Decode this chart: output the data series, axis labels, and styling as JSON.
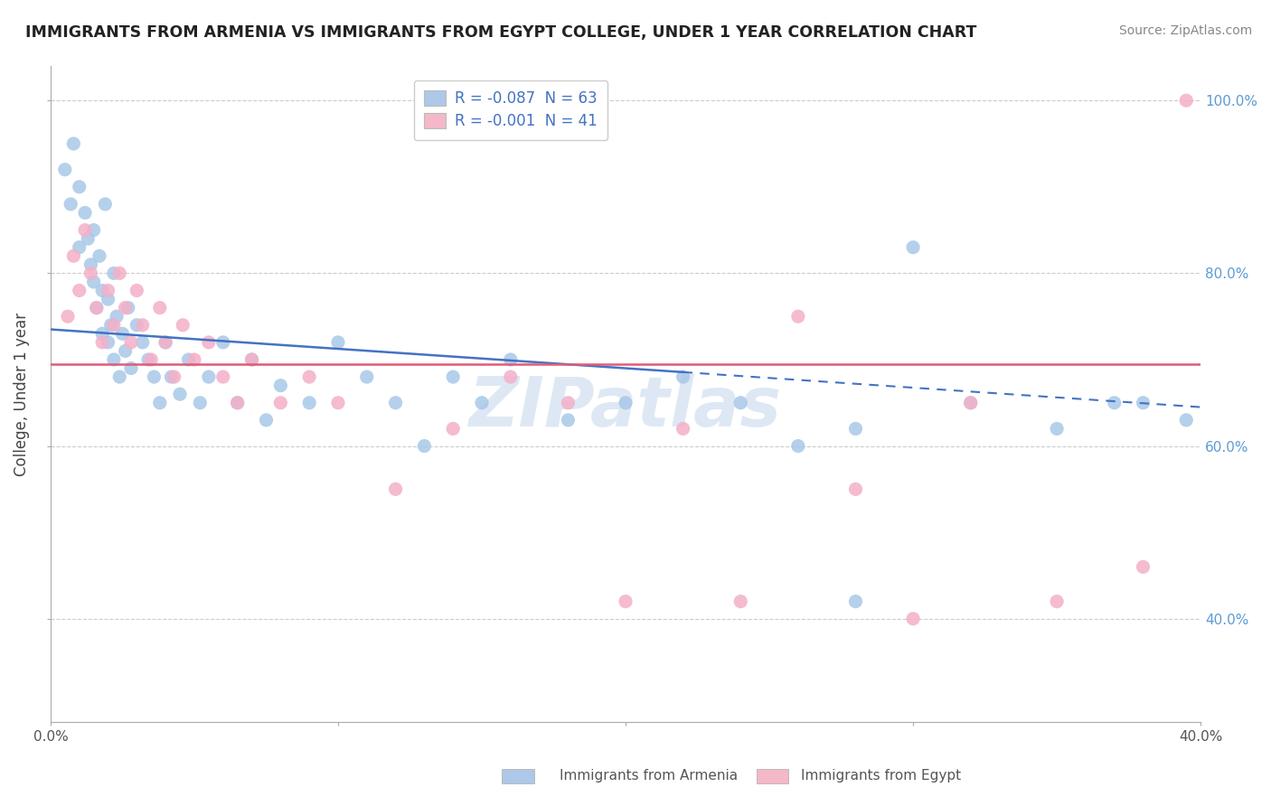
{
  "title": "IMMIGRANTS FROM ARMENIA VS IMMIGRANTS FROM EGYPT COLLEGE, UNDER 1 YEAR CORRELATION CHART",
  "source": "Source: ZipAtlas.com",
  "ylabel": "College, Under 1 year",
  "legend_label1": "R = -0.087  N = 63",
  "legend_label2": "R = -0.001  N = 41",
  "legend_color1": "#adc8e8",
  "legend_color2": "#f4b8c8",
  "watermark": "ZIPatlas",
  "xlim": [
    0.0,
    0.4
  ],
  "ylim": [
    0.28,
    1.04
  ],
  "ytick_values": [
    0.4,
    0.6,
    0.8,
    1.0
  ],
  "ytick_labels": [
    "40.0%",
    "60.0%",
    "80.0%",
    "100.0%"
  ],
  "bottom_labels": [
    "Immigrants from Armenia",
    "Immigrants from Egypt"
  ],
  "armenia_x": [
    0.005,
    0.007,
    0.008,
    0.01,
    0.01,
    0.012,
    0.013,
    0.014,
    0.015,
    0.015,
    0.016,
    0.017,
    0.018,
    0.018,
    0.019,
    0.02,
    0.02,
    0.021,
    0.022,
    0.022,
    0.023,
    0.024,
    0.025,
    0.026,
    0.027,
    0.028,
    0.03,
    0.032,
    0.034,
    0.036,
    0.038,
    0.04,
    0.042,
    0.045,
    0.048,
    0.052,
    0.055,
    0.06,
    0.065,
    0.07,
    0.075,
    0.08,
    0.09,
    0.1,
    0.11,
    0.12,
    0.13,
    0.14,
    0.15,
    0.16,
    0.18,
    0.2,
    0.22,
    0.24,
    0.26,
    0.28,
    0.3,
    0.32,
    0.35,
    0.37,
    0.28,
    0.38,
    0.395
  ],
  "armenia_y": [
    0.92,
    0.88,
    0.95,
    0.9,
    0.83,
    0.87,
    0.84,
    0.81,
    0.79,
    0.85,
    0.76,
    0.82,
    0.78,
    0.73,
    0.88,
    0.72,
    0.77,
    0.74,
    0.8,
    0.7,
    0.75,
    0.68,
    0.73,
    0.71,
    0.76,
    0.69,
    0.74,
    0.72,
    0.7,
    0.68,
    0.65,
    0.72,
    0.68,
    0.66,
    0.7,
    0.65,
    0.68,
    0.72,
    0.65,
    0.7,
    0.63,
    0.67,
    0.65,
    0.72,
    0.68,
    0.65,
    0.6,
    0.68,
    0.65,
    0.7,
    0.63,
    0.65,
    0.68,
    0.65,
    0.6,
    0.62,
    0.83,
    0.65,
    0.62,
    0.65,
    0.42,
    0.65,
    0.63
  ],
  "egypt_x": [
    0.006,
    0.008,
    0.01,
    0.012,
    0.014,
    0.016,
    0.018,
    0.02,
    0.022,
    0.024,
    0.026,
    0.028,
    0.03,
    0.032,
    0.035,
    0.038,
    0.04,
    0.043,
    0.046,
    0.05,
    0.055,
    0.06,
    0.065,
    0.07,
    0.08,
    0.09,
    0.1,
    0.12,
    0.14,
    0.16,
    0.18,
    0.2,
    0.22,
    0.24,
    0.26,
    0.28,
    0.3,
    0.32,
    0.35,
    0.38,
    0.395
  ],
  "egypt_y": [
    0.75,
    0.82,
    0.78,
    0.85,
    0.8,
    0.76,
    0.72,
    0.78,
    0.74,
    0.8,
    0.76,
    0.72,
    0.78,
    0.74,
    0.7,
    0.76,
    0.72,
    0.68,
    0.74,
    0.7,
    0.72,
    0.68,
    0.65,
    0.7,
    0.65,
    0.68,
    0.65,
    0.55,
    0.62,
    0.68,
    0.65,
    0.42,
    0.62,
    0.42,
    0.75,
    0.55,
    0.4,
    0.65,
    0.42,
    0.46,
    1.0
  ],
  "trend_armenia_color": "#4472c4",
  "trend_egypt_color": "#e05c75",
  "scatter_armenia_color": "#a8c8e8",
  "scatter_egypt_color": "#f4b0c8",
  "grid_color": "#cccccc",
  "background_color": "#ffffff",
  "trend_arm_x0": 0.0,
  "trend_arm_y0": 0.735,
  "trend_arm_x1": 0.4,
  "trend_arm_y1": 0.645,
  "trend_arm_dash_x0": 0.22,
  "trend_arm_dash_x1": 0.4,
  "trend_egy_x0": 0.0,
  "trend_egy_y0": 0.695,
  "trend_egy_x1": 0.4,
  "trend_egy_y1": 0.695
}
